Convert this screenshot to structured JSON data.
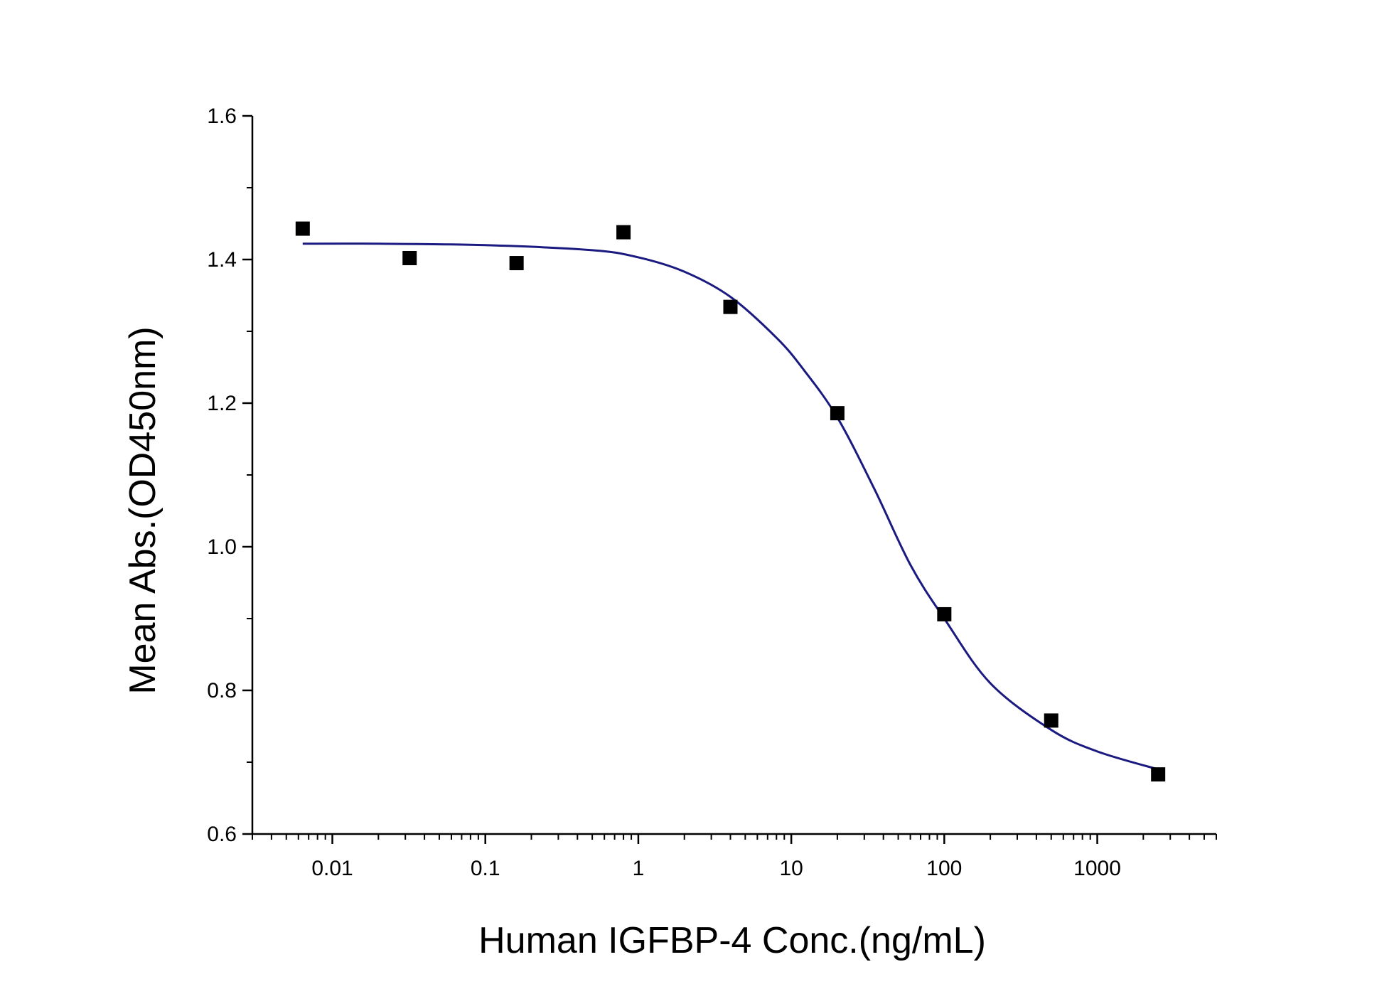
{
  "chart_data": {
    "type": "scatter",
    "title": "",
    "xlabel": "Human IGFBP-4 Conc.(ng/mL)",
    "ylabel": "Mean Abs.(OD450nm)",
    "xscale": "log",
    "xlim": [
      0.003,
      6000
    ],
    "ylim": [
      0.6,
      1.6
    ],
    "x_tick_labels": [
      "0.01",
      "0.1",
      "1",
      "10",
      "100",
      "1000"
    ],
    "y_tick_labels": [
      "0.6",
      "0.8",
      "1.0",
      "1.2",
      "1.4",
      "1.6"
    ],
    "grid": false,
    "legend": "none",
    "colors": {
      "points": "#000000",
      "fit": "#1a1a80"
    },
    "series": [
      {
        "kind": "points",
        "x": [
          0.0064,
          0.032,
          0.16,
          0.8,
          4,
          20,
          100,
          500,
          2500
        ],
        "y": [
          1.443,
          1.402,
          1.395,
          1.438,
          1.334,
          1.186,
          0.906,
          0.758,
          0.683
        ]
      },
      {
        "kind": "fit-curve",
        "x": [
          0.0064,
          0.02,
          0.1,
          0.5,
          1,
          2,
          4,
          8,
          12,
          20,
          35,
          60,
          100,
          200,
          500,
          1000,
          2500
        ],
        "y": [
          1.422,
          1.422,
          1.42,
          1.413,
          1.403,
          1.383,
          1.348,
          1.291,
          1.247,
          1.18,
          1.08,
          0.975,
          0.9,
          0.81,
          0.745,
          0.715,
          0.69
        ]
      }
    ]
  }
}
